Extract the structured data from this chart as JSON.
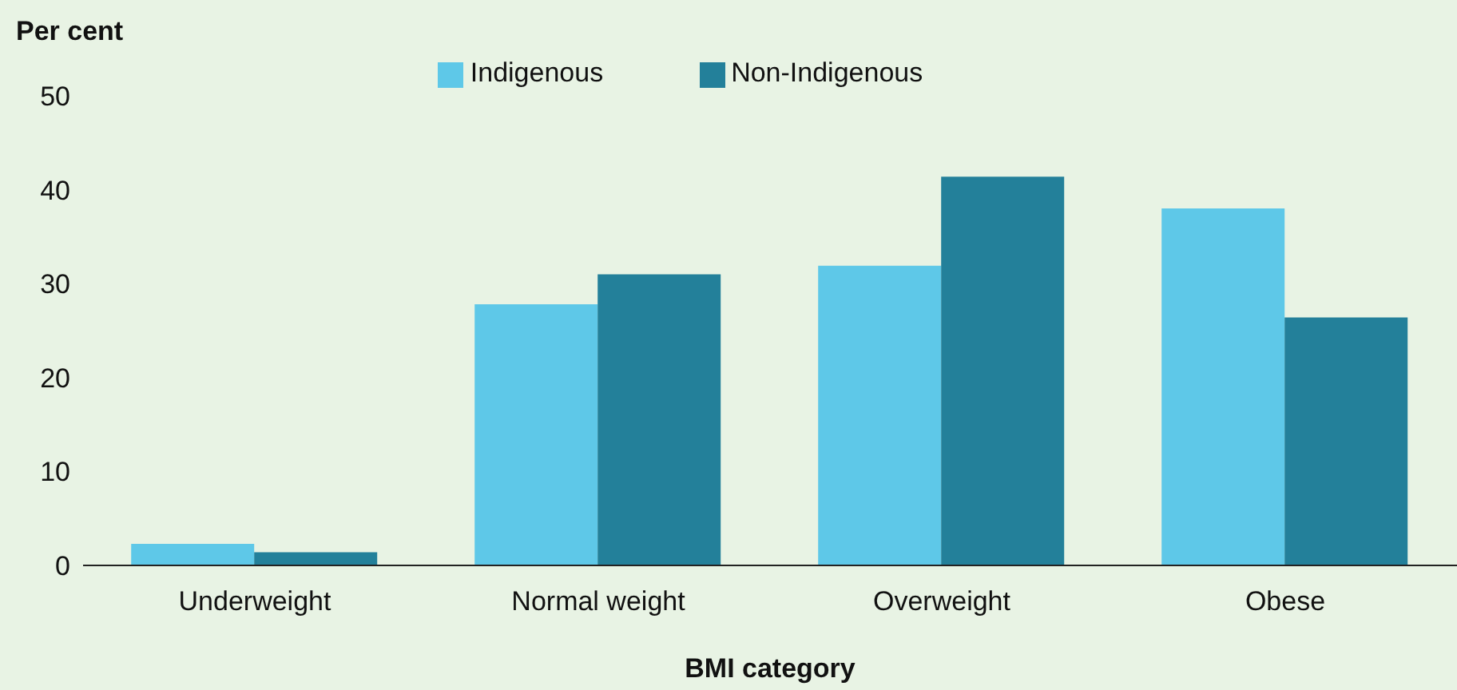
{
  "chart_data": {
    "type": "bar",
    "xlabel": "BMI category",
    "ylabel": "Per cent",
    "categories": [
      "Underweight",
      "Normal weight",
      "Overweight",
      "Obese"
    ],
    "series": [
      {
        "name": "Indigenous",
        "color": "#5ec8e8",
        "values": [
          2.3,
          27.8,
          31.9,
          38.0
        ]
      },
      {
        "name": "Non-Indigenous",
        "color": "#23809a",
        "values": [
          1.4,
          31.0,
          41.4,
          26.4
        ]
      }
    ],
    "ylim": [
      0,
      50
    ],
    "yticks": [
      0,
      10,
      20,
      30,
      40,
      50
    ],
    "grid": false,
    "legend": "top"
  }
}
